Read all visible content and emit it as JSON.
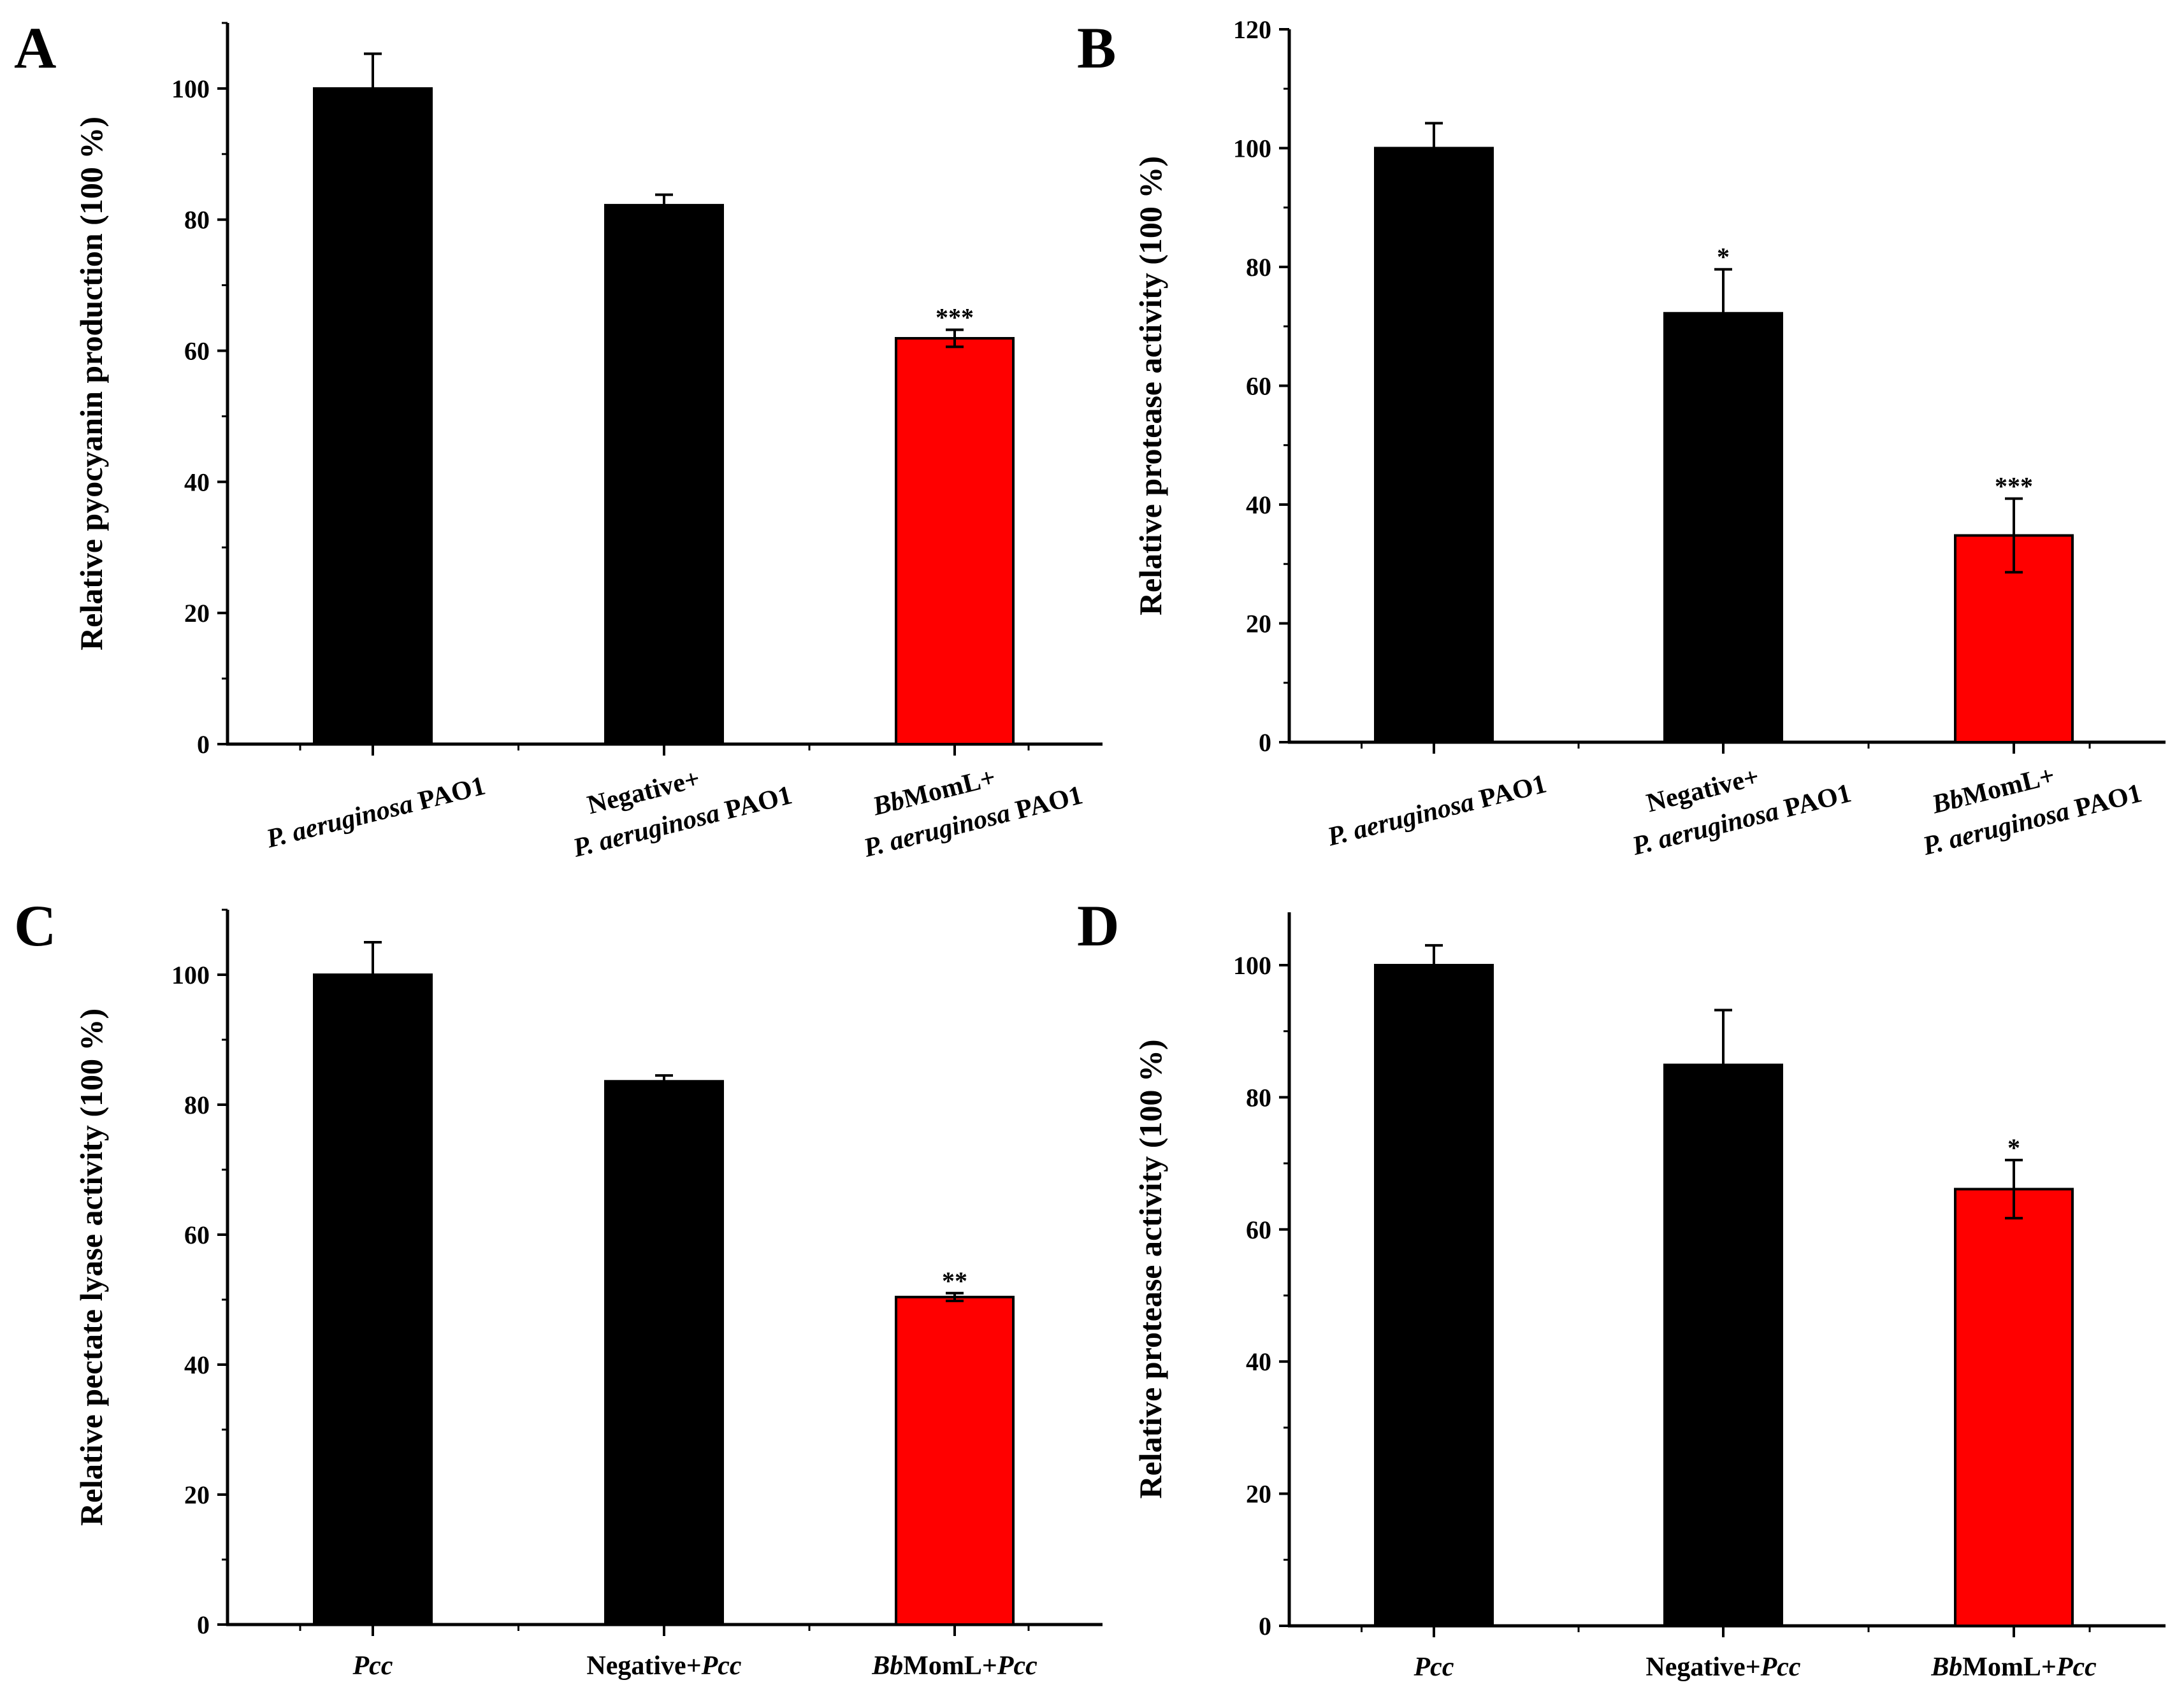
{
  "figure": {
    "description": "Four-panel bar chart figure",
    "bar_colors": {
      "control": "#000000",
      "treatment": "#ff0000"
    }
  },
  "chart_data": [
    {
      "panel": "A",
      "type": "bar",
      "title": "",
      "xlabel": "",
      "ylabel": "Relative pyocyanin production (100 %)",
      "ylim": [
        0,
        110
      ],
      "yticks": [
        0,
        20,
        40,
        60,
        80,
        100
      ],
      "categories": [
        {
          "parts": [
            {
              "text": "P. aeruginosa",
              "italic": true
            },
            {
              "text": " PAO1",
              "italic": false
            }
          ]
        },
        {
          "parts": [
            {
              "text": "Negative+",
              "italic": false
            }
          ],
          "line2": [
            {
              "text": "P. aeruginosa",
              "italic": true
            },
            {
              "text": " PAO1",
              "italic": false
            }
          ]
        },
        {
          "parts": [
            {
              "text": "Bb",
              "italic": true
            },
            {
              "text": "MomL+",
              "italic": false
            }
          ],
          "line2": [
            {
              "text": "P. aeruginosa",
              "italic": true
            },
            {
              "text": " PAO1",
              "italic": false
            }
          ]
        }
      ],
      "category_text": [
        "P. aeruginosa PAO1",
        "Negative+ P. aeruginosa PAO1",
        "BbMomL+ P. aeruginosa PAO1"
      ],
      "values": [
        100,
        82.2,
        61.9
      ],
      "errors": [
        5.3,
        1.6,
        1.3
      ],
      "significance": [
        "",
        "",
        "***"
      ],
      "colors": [
        "#000000",
        "#000000",
        "#ff0000"
      ],
      "rotated_labels": true
    },
    {
      "panel": "B",
      "type": "bar",
      "title": "",
      "xlabel": "",
      "ylabel": "Relative protease activity (100 %)",
      "ylim": [
        0,
        120
      ],
      "yticks": [
        0,
        20,
        40,
        60,
        80,
        100,
        120
      ],
      "categories": [
        {
          "parts": [
            {
              "text": "P. aeruginosa",
              "italic": true
            },
            {
              "text": " PAO1",
              "italic": false
            }
          ]
        },
        {
          "parts": [
            {
              "text": "Negative+",
              "italic": false
            }
          ],
          "line2": [
            {
              "text": "P. aeruginosa",
              "italic": true
            },
            {
              "text": " PAO1",
              "italic": false
            }
          ]
        },
        {
          "parts": [
            {
              "text": "Bb",
              "italic": true
            },
            {
              "text": "MomL+",
              "italic": false
            }
          ],
          "line2": [
            {
              "text": "P. aeruginosa",
              "italic": true
            },
            {
              "text": " PAO1",
              "italic": false
            }
          ]
        }
      ],
      "category_text": [
        "P. aeruginosa PAO1",
        "Negative+ P. aeruginosa PAO1",
        "BbMomL+ P. aeruginosa PAO1"
      ],
      "values": [
        100,
        72.2,
        34.8
      ],
      "errors": [
        4.2,
        7.4,
        6.2
      ],
      "significance": [
        "",
        "*",
        "***"
      ],
      "colors": [
        "#000000",
        "#000000",
        "#ff0000"
      ],
      "rotated_labels": true
    },
    {
      "panel": "C",
      "type": "bar",
      "title": "",
      "xlabel": "",
      "ylabel": "Relative pectate lyase activity (100 %)",
      "ylim": [
        0,
        110
      ],
      "yticks": [
        0,
        20,
        40,
        60,
        80,
        100
      ],
      "categories": [
        {
          "parts": [
            {
              "text": "Pcc",
              "italic": true
            }
          ]
        },
        {
          "parts": [
            {
              "text": "Negative+",
              "italic": false
            },
            {
              "text": "Pcc",
              "italic": true
            }
          ]
        },
        {
          "parts": [
            {
              "text": "Bb",
              "italic": true
            },
            {
              "text": "MomL+",
              "italic": false
            },
            {
              "text": "Pcc",
              "italic": true
            }
          ]
        }
      ],
      "category_text": [
        "Pcc",
        "Negative+Pcc",
        "BbMomL+Pcc"
      ],
      "values": [
        100,
        83.6,
        50.4
      ],
      "errors": [
        5.0,
        0.9,
        0.6
      ],
      "significance": [
        "",
        "",
        "**"
      ],
      "colors": [
        "#000000",
        "#000000",
        "#ff0000"
      ],
      "rotated_labels": false
    },
    {
      "panel": "D",
      "type": "bar",
      "title": "",
      "xlabel": "",
      "ylabel": "Relative protease activity (100 %)",
      "ylim": [
        0,
        108
      ],
      "yticks": [
        0,
        20,
        40,
        60,
        80,
        100
      ],
      "categories": [
        {
          "parts": [
            {
              "text": "Pcc",
              "italic": true
            }
          ]
        },
        {
          "parts": [
            {
              "text": "Negative+",
              "italic": false
            },
            {
              "text": "Pcc",
              "italic": true
            }
          ]
        },
        {
          "parts": [
            {
              "text": "Bb",
              "italic": true
            },
            {
              "text": "MomL+",
              "italic": false
            },
            {
              "text": "Pcc",
              "italic": true
            }
          ]
        }
      ],
      "category_text": [
        "Pcc",
        "Negative+Pcc",
        "BbMomL+Pcc"
      ],
      "values": [
        100,
        84.9,
        66.1
      ],
      "errors": [
        3.0,
        8.3,
        4.4
      ],
      "significance": [
        "",
        "",
        "*"
      ],
      "colors": [
        "#000000",
        "#000000",
        "#ff0000"
      ],
      "rotated_labels": false
    }
  ]
}
